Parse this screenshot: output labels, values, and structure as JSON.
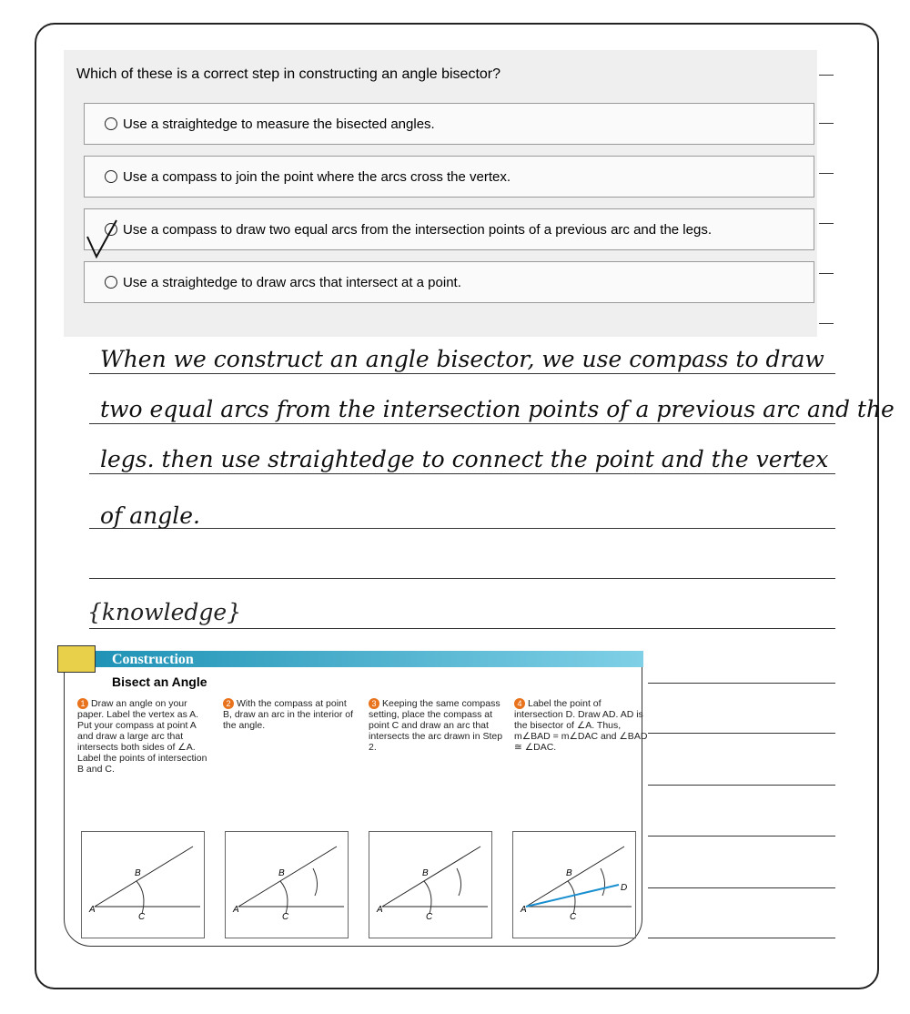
{
  "question": {
    "prompt": "Which of these is a correct step in constructing an angle bisector?",
    "options": [
      "Use a straightedge to measure the bisected angles.",
      "Use a compass to join the point where the arcs cross the vertex.",
      "Use a compass to draw two equal arcs from the intersection points of a previous arc and the legs.",
      "Use a straightedge to draw arcs that intersect at a point."
    ]
  },
  "answer": {
    "lines": [
      "When we construct an angle bisector, we use compass to draw",
      "two equal arcs from the intersection points of a previous arc and the",
      "legs. then use straightedge to connect the point and the vertex",
      "of angle."
    ]
  },
  "knowledge": {
    "heading": "{knowledge}",
    "construction": {
      "label": "Construction",
      "title": "Bisect an Angle",
      "steps": [
        {
          "number": "1",
          "text": "Draw an angle on your paper. Label the vertex as A. Put your compass at point A and draw a large arc that intersects both sides of ∠A. Label the points of intersection B and C."
        },
        {
          "number": "2",
          "text": "With the compass at point B, draw an arc in the interior of the angle."
        },
        {
          "number": "3",
          "text": "Keeping the same compass setting, place the compass at point C and draw an arc that intersects the arc drawn in Step 2."
        },
        {
          "number": "4",
          "text": "Label the point of intersection D. Draw AD. AD is the bisector of ∠A. Thus, m∠BAD = m∠DAC and ∠BAD ≅ ∠DAC."
        }
      ],
      "figures": [
        [
          "A",
          "B",
          "C"
        ],
        [
          "A",
          "B",
          "C"
        ],
        [
          "A",
          "B",
          "C"
        ],
        [
          "A",
          "B",
          "C",
          "D"
        ]
      ]
    }
  }
}
